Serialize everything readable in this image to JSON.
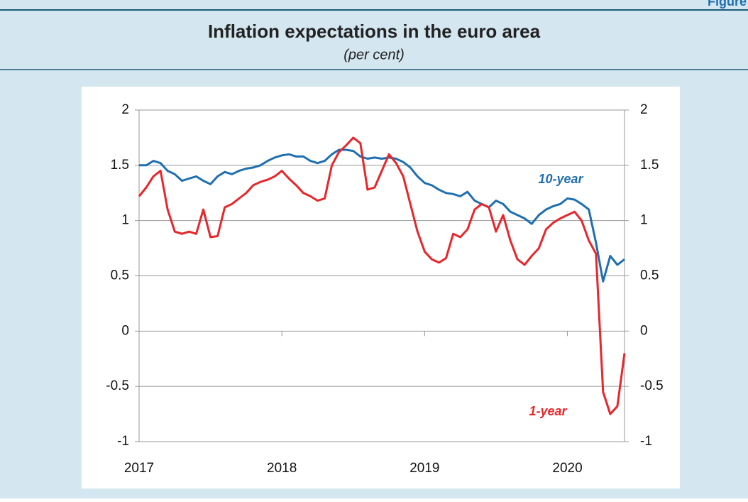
{
  "figure_label": "Figure",
  "chart_data": {
    "type": "line",
    "title": "Inflation expectations in the euro area",
    "subtitle": "(per cent)",
    "x": [
      2017.0,
      2017.05,
      2017.1,
      2017.15,
      2017.2,
      2017.25,
      2017.3,
      2017.35,
      2017.4,
      2017.45,
      2017.5,
      2017.55,
      2017.6,
      2017.65,
      2017.7,
      2017.75,
      2017.8,
      2017.85,
      2017.9,
      2017.95,
      2018.0,
      2018.05,
      2018.1,
      2018.15,
      2018.2,
      2018.25,
      2018.3,
      2018.35,
      2018.4,
      2018.45,
      2018.5,
      2018.55,
      2018.6,
      2018.65,
      2018.7,
      2018.75,
      2018.8,
      2018.85,
      2018.9,
      2018.95,
      2019.0,
      2019.05,
      2019.1,
      2019.15,
      2019.2,
      2019.25,
      2019.3,
      2019.35,
      2019.4,
      2019.45,
      2019.5,
      2019.55,
      2019.6,
      2019.65,
      2019.7,
      2019.75,
      2019.8,
      2019.85,
      2019.9,
      2019.95,
      2020.0,
      2020.05,
      2020.1,
      2020.15,
      2020.2,
      2020.25,
      2020.3,
      2020.35,
      2020.4
    ],
    "series": [
      {
        "name": "10-year",
        "color": "#1f6fb0",
        "values": [
          1.5,
          1.5,
          1.54,
          1.52,
          1.45,
          1.42,
          1.36,
          1.38,
          1.4,
          1.36,
          1.33,
          1.4,
          1.44,
          1.42,
          1.45,
          1.47,
          1.48,
          1.5,
          1.54,
          1.57,
          1.59,
          1.6,
          1.58,
          1.58,
          1.54,
          1.52,
          1.54,
          1.6,
          1.64,
          1.64,
          1.63,
          1.58,
          1.56,
          1.57,
          1.56,
          1.57,
          1.56,
          1.53,
          1.48,
          1.4,
          1.34,
          1.32,
          1.28,
          1.25,
          1.24,
          1.22,
          1.26,
          1.18,
          1.15,
          1.12,
          1.18,
          1.15,
          1.08,
          1.05,
          1.02,
          0.97,
          1.05,
          1.1,
          1.13,
          1.15,
          1.2,
          1.19,
          1.15,
          1.1,
          0.8,
          0.45,
          0.68,
          0.6,
          0.65
        ]
      },
      {
        "name": "1-year",
        "color": "#e8262b",
        "values": [
          1.22,
          1.3,
          1.4,
          1.45,
          1.1,
          0.9,
          0.88,
          0.9,
          0.88,
          1.1,
          0.85,
          0.86,
          1.12,
          1.15,
          1.2,
          1.25,
          1.32,
          1.35,
          1.37,
          1.4,
          1.45,
          1.38,
          1.32,
          1.25,
          1.22,
          1.18,
          1.2,
          1.5,
          1.62,
          1.68,
          1.75,
          1.7,
          1.28,
          1.3,
          1.45,
          1.6,
          1.52,
          1.4,
          1.15,
          0.9,
          0.72,
          0.65,
          0.62,
          0.66,
          0.88,
          0.85,
          0.92,
          1.1,
          1.15,
          1.12,
          0.9,
          1.05,
          0.82,
          0.65,
          0.6,
          0.68,
          0.75,
          0.92,
          0.98,
          1.02,
          1.05,
          1.08,
          1.0,
          0.82,
          0.7,
          -0.55,
          -0.75,
          -0.68,
          -0.2
        ]
      }
    ],
    "xlim": [
      2017,
      2020.4
    ],
    "xticks": [
      2017,
      2018,
      2019,
      2020
    ],
    "ylim": [
      -1,
      2
    ],
    "yticks": [
      -1,
      -0.5,
      0,
      0.5,
      1,
      1.5,
      2
    ],
    "y2lim": [
      -1,
      2
    ],
    "y2ticks": [
      -1,
      -0.5,
      0,
      0.5,
      1,
      1.5,
      2
    ],
    "grid": true
  }
}
